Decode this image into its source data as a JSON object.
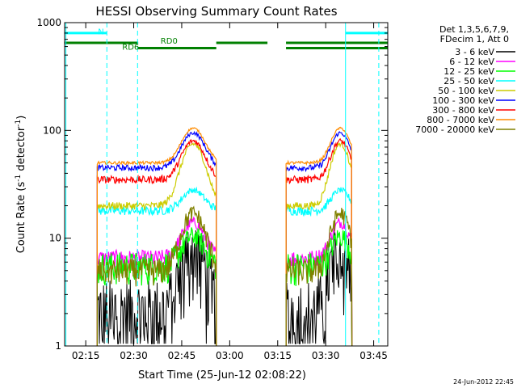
{
  "chart_data": {
    "type": "line",
    "title": "HESSI Observing Summary Count Rates",
    "xlabel": "Start Time (25-Jun-12 02:08:22)",
    "ylabel_prefix": "Count Rate (s",
    "ylabel_sup1": "-1",
    "ylabel_mid": " detector",
    "ylabel_sup2": "-1",
    "ylabel_suffix": ")",
    "timestamp": "24-Jun-2012 22:45",
    "x_unit": "minutes after 02:08:22",
    "xlim": [
      0,
      101
    ],
    "ylim": [
      1,
      1000
    ],
    "yscale": "log",
    "x_ticks": [
      {
        "x": 6.6,
        "label": "02:15"
      },
      {
        "x": 21.6,
        "label": "02:30"
      },
      {
        "x": 36.6,
        "label": "02:45"
      },
      {
        "x": 51.6,
        "label": "03:00"
      },
      {
        "x": 66.6,
        "label": "03:15"
      },
      {
        "x": 81.6,
        "label": "03:30"
      },
      {
        "x": 96.6,
        "label": "03:45"
      }
    ],
    "y_ticks": [
      {
        "y": 1,
        "label": "1"
      },
      {
        "y": 10,
        "label": "10"
      },
      {
        "y": 100,
        "label": "100"
      },
      {
        "y": 1000,
        "label": "1000"
      }
    ],
    "legend": {
      "position": "top-right, outside plot",
      "header": [
        "Det 1,3,5,6,7,9,",
        "FDecim 1, Att 0"
      ]
    },
    "day_intervals": [
      [
        10.2,
        47.4
      ],
      [
        69.2,
        89.8
      ]
    ],
    "series": [
      {
        "name": "3 - 6 keV",
        "color": "#000000",
        "base": 2.2,
        "peak": 9.0,
        "noise": 0.55,
        "min": 1.2
      },
      {
        "name": "6 - 12 keV",
        "color": "#ff00ff",
        "base": 6.5,
        "peak": 14.0,
        "noise": 0.12
      },
      {
        "name": "12 - 25 keV",
        "color": "#00ff00",
        "base": 5.5,
        "peak": 10.5,
        "noise": 0.22
      },
      {
        "name": "25 - 50 keV",
        "color": "#00ffff",
        "base": 18.0,
        "peak": 28.0,
        "noise": 0.06
      },
      {
        "name": "50 - 100 keV",
        "color": "#cccc00",
        "base": 20.0,
        "peak": 75.0,
        "noise": 0.05
      },
      {
        "name": "100 - 300 keV",
        "color": "#0000ff",
        "base": 45.0,
        "peak": 95.0,
        "noise": 0.04
      },
      {
        "name": "300 - 800 keV",
        "color": "#ff0000",
        "base": 35.0,
        "peak": 80.0,
        "noise": 0.05
      },
      {
        "name": "800 - 7000 keV",
        "color": "#ff8c00",
        "base": 50.0,
        "peak": 105.0,
        "noise": 0.02
      },
      {
        "name": "7000 - 20000 keV",
        "color": "#808000",
        "base": 5.0,
        "peak": 17.0,
        "noise": 0.18
      }
    ],
    "annotations": [
      {
        "label": "N",
        "color": "#00ffff"
      },
      {
        "label": "RD0",
        "color": "#008000"
      },
      {
        "label": "RD6",
        "color": "#008000"
      }
    ],
    "flag_segments": {
      "night": {
        "color": "#00ffff",
        "y": 800,
        "intervals": [
          [
            0,
            13.2
          ],
          [
            87.8,
            101
          ]
        ]
      },
      "saa": {
        "color": "#008000",
        "y": 650,
        "intervals": [
          [
            0,
            23.0
          ],
          [
            47.4,
            63.4
          ],
          [
            69.2,
            101
          ]
        ]
      },
      "rd_low": {
        "color": "#008000",
        "y": 580,
        "intervals": [
          [
            23.0,
            47.4
          ],
          [
            69.2,
            101
          ]
        ]
      }
    },
    "event_lines": [
      {
        "x": 13.2,
        "color": "#00ffff",
        "style": "dashed"
      },
      {
        "x": 22.8,
        "color": "#00ffff",
        "style": "dashed"
      },
      {
        "x": 87.8,
        "color": "#00ffff",
        "style": "solid"
      },
      {
        "x": 98.2,
        "color": "#00ffff",
        "style": "dashed"
      },
      {
        "x": 0.4,
        "color": "#00ffff",
        "style": "solid"
      }
    ],
    "grid": false
  }
}
